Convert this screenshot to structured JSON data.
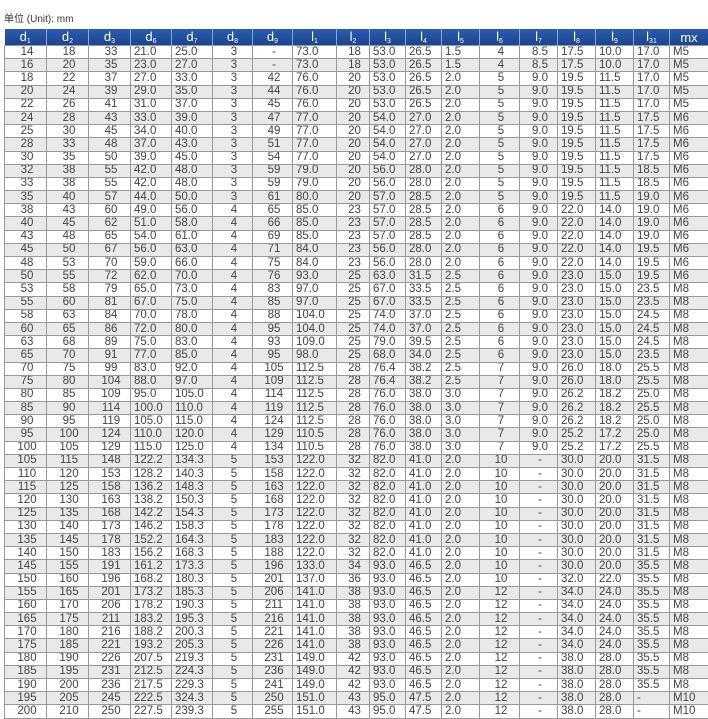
{
  "unit_label": "单位 (Unit): mm",
  "header_color": "#1f4e9c",
  "columns": [
    {
      "base": "d",
      "sub": "1"
    },
    {
      "base": "d",
      "sub": "2"
    },
    {
      "base": "d",
      "sub": "3"
    },
    {
      "base": "d",
      "sub": "6"
    },
    {
      "base": "d",
      "sub": "7"
    },
    {
      "base": "d",
      "sub": "8"
    },
    {
      "base": "d",
      "sub": "9"
    },
    {
      "base": "l",
      "sub": "1"
    },
    {
      "base": "l",
      "sub": "2"
    },
    {
      "base": "l",
      "sub": "3"
    },
    {
      "base": "l",
      "sub": "4"
    },
    {
      "base": "l",
      "sub": "5"
    },
    {
      "base": "l",
      "sub": "6"
    },
    {
      "base": "l",
      "sub": "7"
    },
    {
      "base": "l",
      "sub": "8"
    },
    {
      "base": "l",
      "sub": "9"
    },
    {
      "base": "l",
      "sub": "31"
    },
    {
      "base": "mx",
      "sub": ""
    }
  ],
  "rows": [
    [
      "14",
      "18",
      "33",
      "21.0",
      "25.0",
      "3",
      "-",
      "73.0",
      "18",
      "53.0",
      "26.5",
      "1.5",
      "4",
      "8.5",
      "17.5",
      "10.0",
      "17.0",
      "M5"
    ],
    [
      "16",
      "20",
      "35",
      "23.0",
      "27.0",
      "3",
      "-",
      "73.0",
      "18",
      "53.0",
      "26.5",
      "1.5",
      "4",
      "8.5",
      "17.5",
      "10.0",
      "17.0",
      "M5"
    ],
    [
      "18",
      "22",
      "37",
      "27.0",
      "33.0",
      "3",
      "42",
      "76.0",
      "20",
      "53.0",
      "26.5",
      "2.0",
      "5",
      "9.0",
      "19.5",
      "11.5",
      "17.0",
      "M5"
    ],
    [
      "20",
      "24",
      "39",
      "29.0",
      "35.0",
      "3",
      "44",
      "76.0",
      "20",
      "53.0",
      "26.5",
      "2.0",
      "5",
      "9.0",
      "19.5",
      "11.5",
      "17.0",
      "M5"
    ],
    [
      "22",
      "26",
      "41",
      "31.0",
      "37.0",
      "3",
      "45",
      "76.0",
      "20",
      "53.0",
      "26.5",
      "2.0",
      "5",
      "9.0",
      "19.5",
      "11.5",
      "17.0",
      "M5"
    ],
    [
      "24",
      "28",
      "43",
      "33.0",
      "39.0",
      "3",
      "47",
      "77.0",
      "20",
      "54.0",
      "27.0",
      "2.0",
      "5",
      "9.0",
      "19.5",
      "11.5",
      "17.5",
      "M6"
    ],
    [
      "25",
      "30",
      "45",
      "34.0",
      "40.0",
      "3",
      "49",
      "77.0",
      "20",
      "54.0",
      "27.0",
      "2.0",
      "5",
      "9.0",
      "19.5",
      "11.5",
      "17.5",
      "M6"
    ],
    [
      "28",
      "33",
      "48",
      "37.0",
      "43.0",
      "3",
      "51",
      "77.0",
      "20",
      "54.0",
      "27.0",
      "2.0",
      "5",
      "9.0",
      "19.5",
      "11.5",
      "17.5",
      "M6"
    ],
    [
      "30",
      "35",
      "50",
      "39.0",
      "45.0",
      "3",
      "54",
      "77.0",
      "20",
      "54.0",
      "27.0",
      "2.0",
      "5",
      "9.0",
      "19.5",
      "11.5",
      "17.5",
      "M6"
    ],
    [
      "32",
      "38",
      "55",
      "42.0",
      "48.0",
      "3",
      "59",
      "79.0",
      "20",
      "56.0",
      "28.0",
      "2.0",
      "5",
      "9.0",
      "19.5",
      "11.5",
      "18.5",
      "M6"
    ],
    [
      "33",
      "38",
      "55",
      "42.0",
      "48.0",
      "3",
      "59",
      "79.0",
      "20",
      "56.0",
      "28.0",
      "2.0",
      "5",
      "9.0",
      "19.5",
      "11.5",
      "18.5",
      "M6"
    ],
    [
      "35",
      "40",
      "57",
      "44.0",
      "50.0",
      "3",
      "61",
      "80.0",
      "20",
      "57.0",
      "28.5",
      "2.0",
      "5",
      "9.0",
      "19.5",
      "11.5",
      "19.0",
      "M6"
    ],
    [
      "38",
      "43",
      "60",
      "49.0",
      "56.0",
      "4",
      "65",
      "85.0",
      "23",
      "57.0",
      "28.5",
      "2.0",
      "6",
      "9.0",
      "22.0",
      "14.0",
      "19.0",
      "M6"
    ],
    [
      "40",
      "45",
      "62",
      "51.0",
      "58.0",
      "4",
      "66",
      "85.0",
      "23",
      "57.0",
      "28.5",
      "2.0",
      "6",
      "9.0",
      "22.0",
      "14.0",
      "19.0",
      "M6"
    ],
    [
      "43",
      "48",
      "65",
      "54.0",
      "61.0",
      "4",
      "69",
      "85.0",
      "23",
      "57.0",
      "28.5",
      "2.0",
      "6",
      "9.0",
      "22.0",
      "14.0",
      "19.0",
      "M6"
    ],
    [
      "45",
      "50",
      "67",
      "56.0",
      "63.0",
      "4",
      "71",
      "84.0",
      "23",
      "56.0",
      "28.0",
      "2.0",
      "6",
      "9.0",
      "22.0",
      "14.0",
      "19.5",
      "M6"
    ],
    [
      "48",
      "53",
      "70",
      "59.0",
      "66.0",
      "4",
      "75",
      "84.0",
      "23",
      "56.0",
      "28.0",
      "2.0",
      "6",
      "9.0",
      "22.0",
      "14.0",
      "19.5",
      "M6"
    ],
    [
      "50",
      "55",
      "72",
      "62.0",
      "70.0",
      "4",
      "76",
      "93.0",
      "25",
      "63.0",
      "31.5",
      "2.5",
      "6",
      "9.0",
      "23.0",
      "15.0",
      "19.5",
      "M6"
    ],
    [
      "53",
      "58",
      "79",
      "65.0",
      "73.0",
      "4",
      "83",
      "97.0",
      "25",
      "67.0",
      "33.5",
      "2.5",
      "6",
      "9.0",
      "23.0",
      "15.0",
      "23.5",
      "M8"
    ],
    [
      "55",
      "60",
      "81",
      "67.0",
      "75.0",
      "4",
      "85",
      "97.0",
      "25",
      "67.0",
      "33.5",
      "2.5",
      "6",
      "9.0",
      "23.0",
      "15.0",
      "23.5",
      "M8"
    ],
    [
      "58",
      "63",
      "84",
      "70.0",
      "78.0",
      "4",
      "88",
      "104.0",
      "25",
      "74.0",
      "37.0",
      "2.5",
      "6",
      "9.0",
      "23.0",
      "15.0",
      "24.5",
      "M8"
    ],
    [
      "60",
      "65",
      "86",
      "72.0",
      "80.0",
      "4",
      "95",
      "104.0",
      "25",
      "74.0",
      "37.0",
      "2.5",
      "6",
      "9.0",
      "23.0",
      "15.0",
      "24.5",
      "M8"
    ],
    [
      "63",
      "68",
      "89",
      "75.0",
      "83.0",
      "4",
      "93",
      "109.0",
      "25",
      "79.0",
      "39.5",
      "2.5",
      "6",
      "9.0",
      "23.0",
      "15.0",
      "24.5",
      "M8"
    ],
    [
      "65",
      "70",
      "91",
      "77.0",
      "85.0",
      "4",
      "95",
      "98.0",
      "25",
      "68.0",
      "34.0",
      "2.5",
      "6",
      "9.0",
      "23.0",
      "15.0",
      "23.5",
      "M8"
    ],
    [
      "70",
      "75",
      "99",
      "83.0",
      "92.0",
      "4",
      "105",
      "112.5",
      "28",
      "76.4",
      "38.2",
      "2.5",
      "7",
      "9.0",
      "26.0",
      "18.0",
      "25.5",
      "M8"
    ],
    [
      "75",
      "80",
      "104",
      "88.0",
      "97.0",
      "4",
      "109",
      "112.5",
      "28",
      "76.4",
      "38.2",
      "2.5",
      "7",
      "9.0",
      "26.0",
      "18.0",
      "25.5",
      "M8"
    ],
    [
      "80",
      "85",
      "109",
      "95.0",
      "105.0",
      "4",
      "114",
      "112.5",
      "28",
      "76.0",
      "38.0",
      "3.0",
      "7",
      "9.0",
      "26.2",
      "18.2",
      "25.0",
      "M8"
    ],
    [
      "85",
      "90",
      "114",
      "100.0",
      "110.0",
      "4",
      "119",
      "112.5",
      "28",
      "76.0",
      "38.0",
      "3.0",
      "7",
      "9.0",
      "26.2",
      "18.2",
      "25.5",
      "M8"
    ],
    [
      "90",
      "95",
      "119",
      "105.0",
      "115.0",
      "4",
      "124",
      "112.5",
      "28",
      "76.0",
      "38.0",
      "3.0",
      "7",
      "9.0",
      "26.2",
      "18.2",
      "25.0",
      "M8"
    ],
    [
      "95",
      "100",
      "124",
      "110.0",
      "120.0",
      "4",
      "129",
      "110.5",
      "28",
      "76.0",
      "38.0",
      "3.0",
      "7",
      "9.0",
      "25.2",
      "17.2",
      "25.0",
      "M8"
    ],
    [
      "100",
      "105",
      "129",
      "115.0",
      "125.0",
      "4",
      "134",
      "110.5",
      "28",
      "76.0",
      "38.0",
      "3.0",
      "7",
      "9.0",
      "25.2",
      "17.2",
      "25.5",
      "M8"
    ],
    [
      "105",
      "115",
      "148",
      "122.2",
      "134.3",
      "5",
      "153",
      "122.0",
      "32",
      "82.0",
      "41.0",
      "2.0",
      "10",
      "-",
      "30.0",
      "20.0",
      "31.5",
      "M8"
    ],
    [
      "110",
      "120",
      "153",
      "128.2",
      "140.3",
      "5",
      "158",
      "122.0",
      "32",
      "82.0",
      "41.0",
      "2.0",
      "10",
      "-",
      "30.0",
      "20.0",
      "31.5",
      "M8"
    ],
    [
      "115",
      "125",
      "158",
      "136.2",
      "148.3",
      "5",
      "163",
      "122.0",
      "32",
      "82.0",
      "41.0",
      "2.0",
      "10",
      "-",
      "30.0",
      "20.0",
      "31.5",
      "M8"
    ],
    [
      "120",
      "130",
      "163",
      "138.2",
      "150.3",
      "5",
      "168",
      "122.0",
      "32",
      "82.0",
      "41.0",
      "2.0",
      "10",
      "-",
      "30.0",
      "20.0",
      "31.5",
      "M8"
    ],
    [
      "125",
      "135",
      "168",
      "142.2",
      "154.3",
      "5",
      "173",
      "122.0",
      "32",
      "82.0",
      "41.0",
      "2.0",
      "10",
      "-",
      "30.0",
      "20.0",
      "31.5",
      "M8"
    ],
    [
      "130",
      "140",
      "173",
      "146.2",
      "158.3",
      "5",
      "178",
      "122.0",
      "32",
      "82.0",
      "41.0",
      "2.0",
      "10",
      "-",
      "30.0",
      "20.0",
      "31.5",
      "M8"
    ],
    [
      "135",
      "145",
      "178",
      "152.2",
      "164.3",
      "5",
      "183",
      "122.0",
      "32",
      "82.0",
      "41.0",
      "2.0",
      "10",
      "-",
      "30.0",
      "20.0",
      "31.5",
      "M8"
    ],
    [
      "140",
      "150",
      "183",
      "156.2",
      "168.3",
      "5",
      "188",
      "122.0",
      "32",
      "82.0",
      "41.0",
      "2.0",
      "10",
      "-",
      "30.0",
      "20.0",
      "31.5",
      "M8"
    ],
    [
      "145",
      "155",
      "191",
      "161.2",
      "173.3",
      "5",
      "196",
      "133.0",
      "34",
      "93.0",
      "46.5",
      "2.0",
      "10",
      "-",
      "30.0",
      "20.0",
      "35.5",
      "M8"
    ],
    [
      "150",
      "160",
      "196",
      "168.2",
      "180.3",
      "5",
      "201",
      "137.0",
      "36",
      "93.0",
      "46.5",
      "2.0",
      "10",
      "-",
      "32.0",
      "22.0",
      "35.5",
      "M8"
    ],
    [
      "155",
      "165",
      "201",
      "173.2",
      "185.3",
      "5",
      "206",
      "141.0",
      "38",
      "93.0",
      "46.5",
      "2.0",
      "12",
      "-",
      "34.0",
      "24.0",
      "35.5",
      "M8"
    ],
    [
      "160",
      "170",
      "206",
      "178.2",
      "190.3",
      "5",
      "211",
      "141.0",
      "38",
      "93.0",
      "46.5",
      "2.0",
      "12",
      "-",
      "34.0",
      "24.0",
      "35.5",
      "M8"
    ],
    [
      "165",
      "175",
      "211",
      "183.2",
      "195.3",
      "5",
      "216",
      "141.0",
      "38",
      "93.0",
      "46.5",
      "2.0",
      "12",
      "-",
      "34.0",
      "24.0",
      "35.5",
      "M8"
    ],
    [
      "170",
      "180",
      "216",
      "188.2",
      "200.3",
      "5",
      "221",
      "141.0",
      "38",
      "93.0",
      "46.5",
      "2.0",
      "12",
      "-",
      "34.0",
      "24.0",
      "35.5",
      "M8"
    ],
    [
      "175",
      "185",
      "221",
      "193.2",
      "205.3",
      "5",
      "226",
      "141.0",
      "38",
      "93.0",
      "46.5",
      "2.0",
      "12",
      "-",
      "34.0",
      "24.0",
      "35.5",
      "M8"
    ],
    [
      "180",
      "190",
      "226",
      "207.5",
      "219.3",
      "5",
      "231",
      "149.0",
      "42",
      "93.0",
      "46.5",
      "2.0",
      "12",
      "-",
      "38.0",
      "28.0",
      "35.5",
      "M8"
    ],
    [
      "185",
      "195",
      "231",
      "212.5",
      "224.3",
      "5",
      "236",
      "149.0",
      "42",
      "93.0",
      "46.5",
      "2.0",
      "12",
      "-",
      "38.0",
      "28.0",
      "35.5",
      "M8"
    ],
    [
      "190",
      "200",
      "236",
      "217.5",
      "229.3",
      "5",
      "241",
      "149.0",
      "42",
      "93.0",
      "46.5",
      "2.0",
      "12",
      "-",
      "38.0",
      "28.0",
      "35.5",
      "M8"
    ],
    [
      "195",
      "205",
      "245",
      "222.5",
      "324.3",
      "5",
      "250",
      "151.0",
      "43",
      "95.0",
      "47.5",
      "2.0",
      "12",
      "-",
      "38.0",
      "28.0",
      "-",
      "M10"
    ],
    [
      "200",
      "210",
      "250",
      "227.5",
      "239.3",
      "5",
      "255",
      "151.0",
      "43",
      "95.0",
      "47.5",
      "2.0",
      "12",
      "-",
      "38.0",
      "28.0",
      "-",
      "M10"
    ]
  ]
}
